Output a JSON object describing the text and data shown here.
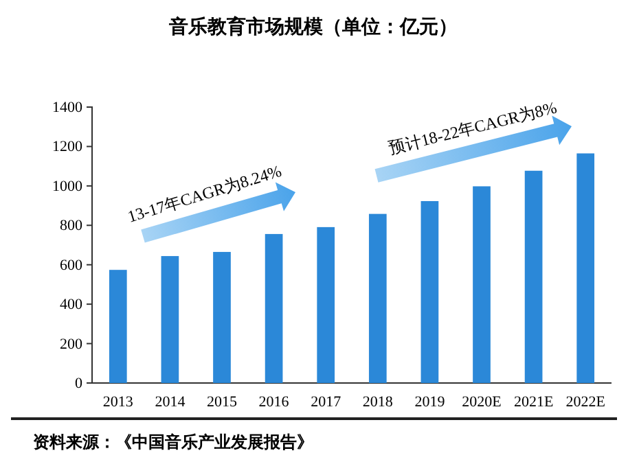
{
  "chart_data": {
    "type": "bar",
    "title": "音乐教育市场规模（单位：亿元）",
    "categories": [
      "2013",
      "2014",
      "2015",
      "2016",
      "2017",
      "2018",
      "2019",
      "2020E",
      "2021E",
      "2022E"
    ],
    "values": [
      574,
      644,
      665,
      756,
      791,
      858,
      923,
      998,
      1077,
      1165
    ],
    "color": "#2b88d8",
    "ylim": [
      0,
      1400
    ],
    "yticks": [
      0,
      200,
      400,
      600,
      800,
      1000,
      1200,
      1400
    ],
    "grid": false,
    "annotations": [
      "13-17年CAGR为8.24%",
      "预计18-22年CAGR为8%",
      "资料来源：《中国音乐产业发展报告》"
    ]
  }
}
